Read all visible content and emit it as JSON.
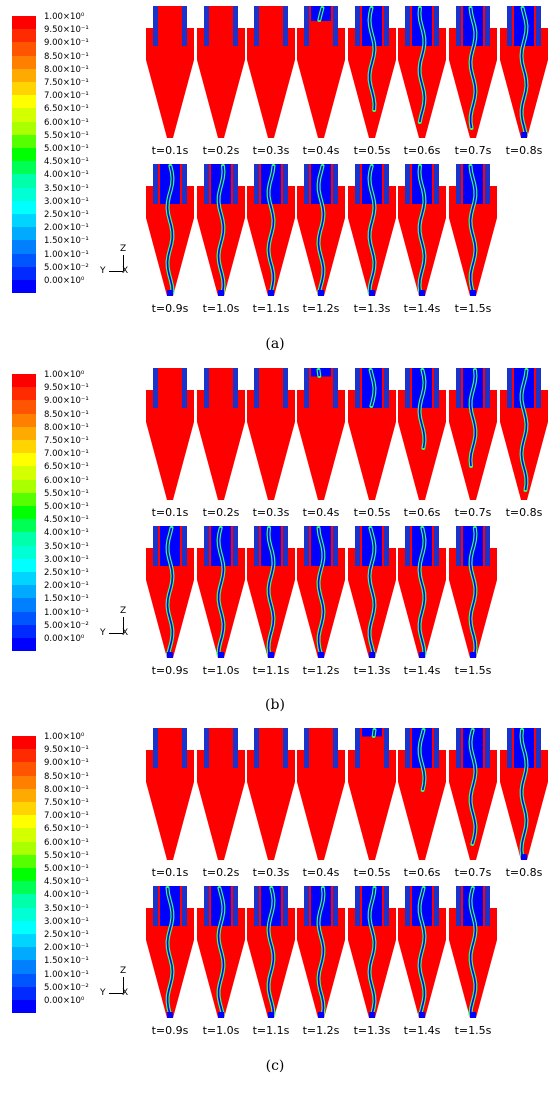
{
  "legend": {
    "labels": [
      "1.00×10⁰",
      "9.50×10⁻¹",
      "9.00×10⁻¹",
      "8.50×10⁻¹",
      "8.00×10⁻¹",
      "7.50×10⁻¹",
      "7.00×10⁻¹",
      "6.50×10⁻¹",
      "6.00×10⁻¹",
      "5.50×10⁻¹",
      "5.00×10⁻¹",
      "4.50×10⁻¹",
      "4.00×10⁻¹",
      "3.50×10⁻¹",
      "3.00×10⁻¹",
      "2.50×10⁻¹",
      "2.00×10⁻¹",
      "1.50×10⁻¹",
      "1.00×10⁻¹",
      "5.00×10⁻²",
      "0.00×10⁰"
    ],
    "colors": [
      "#ff0000",
      "#ff2a00",
      "#ff5500",
      "#ff8000",
      "#ffaa00",
      "#ffd400",
      "#ffff00",
      "#d4ff00",
      "#aaff00",
      "#55ff00",
      "#00ff00",
      "#00ff55",
      "#00ffaa",
      "#00ffd4",
      "#00ffff",
      "#00d4ff",
      "#00aaff",
      "#0080ff",
      "#0055ff",
      "#002aff",
      "#0000ff"
    ]
  },
  "axes": {
    "z": "Z",
    "y": "Y",
    "x": "X"
  },
  "colors": {
    "fluid": "#ff0000",
    "core": "#0000ff",
    "finder": "#1a33cc",
    "interface": "#33ff66"
  },
  "panels": [
    {
      "caption": "(a)",
      "times": [
        "t=0.1s",
        "t=0.2s",
        "t=0.3s",
        "t=0.4s",
        "t=0.5s",
        "t=0.6s",
        "t=0.7s",
        "t=0.8s",
        "t=0.9s",
        "t=1.0s",
        "t=1.1s",
        "t=1.2s",
        "t=1.3s",
        "t=1.4s",
        "t=1.5s"
      ],
      "core_fraction": [
        0,
        0,
        0,
        0.1,
        0.8,
        0.9,
        0.95,
        1,
        1,
        1,
        1,
        1,
        1,
        1,
        1
      ]
    },
    {
      "caption": "(b)",
      "times": [
        "t=0.1s",
        "t=0.2s",
        "t=0.3s",
        "t=0.4s",
        "t=0.5s",
        "t=0.6s",
        "t=0.7s",
        "t=0.8s",
        "t=0.9s",
        "t=1.0s",
        "t=1.1s",
        "t=1.2s",
        "t=1.3s",
        "t=1.4s",
        "t=1.5s"
      ],
      "core_fraction": [
        0,
        0,
        0,
        0.05,
        0.3,
        0.6,
        0.75,
        0.95,
        1,
        1,
        1,
        1,
        1,
        1,
        1
      ]
    },
    {
      "caption": "(c)",
      "times": [
        "t=0.1s",
        "t=0.2s",
        "t=0.3s",
        "t=0.4s",
        "t=0.5s",
        "t=0.6s",
        "t=0.7s",
        "t=0.8s",
        "t=0.9s",
        "t=1.0s",
        "t=1.1s",
        "t=1.2s",
        "t=1.3s",
        "t=1.4s",
        "t=1.5s"
      ],
      "core_fraction": [
        0,
        0,
        0,
        0,
        0.05,
        0.5,
        0.9,
        1,
        1,
        1,
        1,
        1,
        1,
        1,
        1
      ]
    }
  ]
}
